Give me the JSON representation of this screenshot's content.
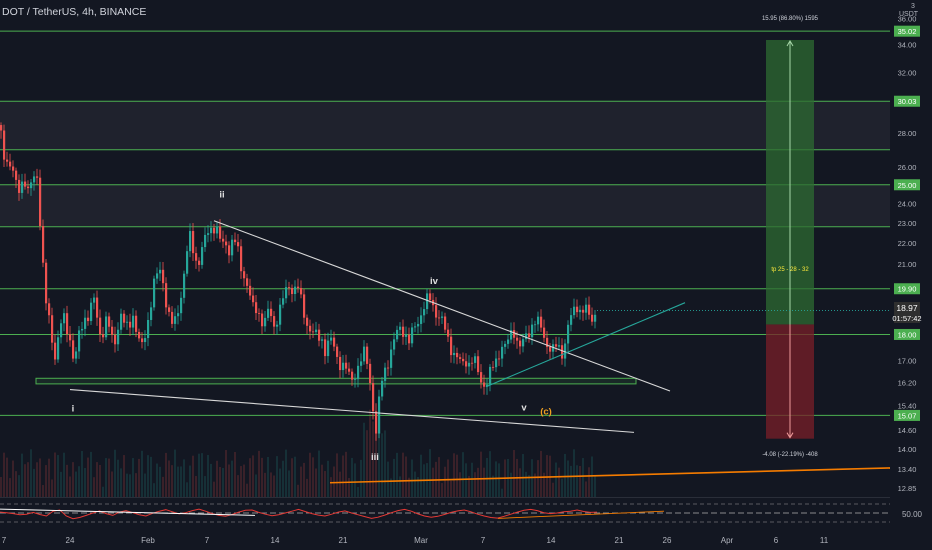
{
  "header": {
    "symbol_title": "DOT / TetherUS, 4h, BINANCE",
    "currency": "USDT",
    "scale_marker": "3"
  },
  "colors": {
    "background": "#131722",
    "level_line": "#4caf50",
    "candle_up": "#26a69a",
    "candle_down": "#ef5350",
    "profit_zone": "#2e6b32",
    "loss_zone": "#7a1f28",
    "rsi_line": "#e53935",
    "trend_orange": "#f57c00",
    "wave_label": "#e0e0e0",
    "wave_c_label": "#f0a020",
    "axis_text": "#b2b5be"
  },
  "chart_data": {
    "type": "candlestick",
    "symbol": "DOT / TetherUS",
    "timeframe": "4h",
    "exchange": "BINANCE",
    "y_scale": "log",
    "ylim": [
      12.6,
      37.5
    ],
    "x_tick_labels": [
      "7",
      "24",
      "Feb",
      "7",
      "14",
      "21",
      "Mar",
      "7",
      "14",
      "21",
      "26",
      "Apr",
      "6",
      "11"
    ],
    "y_tick_labels": [
      "12.85",
      "13.40",
      "14.00",
      "14.60",
      "15.40",
      "16.20",
      "17.00",
      "18.00",
      "19.00",
      "20.00",
      "21.00",
      "22.00",
      "23.00",
      "24.00",
      "26.00",
      "28.00",
      "30.00",
      "32.00",
      "34.00",
      "36.00"
    ],
    "horizontal_levels": [
      "35.02",
      "30.03",
      "27.00",
      "25.00",
      "22.80",
      "19.90",
      "18.00",
      "15.07"
    ],
    "highlighted_levels": [
      35.02,
      30.03,
      25.0,
      19.9,
      18.0,
      15.07
    ],
    "current_price": "18.97",
    "countdown": "01:57:42",
    "price_path": [
      [
        0,
        28.5
      ],
      [
        4,
        27.0
      ],
      [
        8,
        26.3
      ],
      [
        13,
        25.6
      ],
      [
        18,
        24.8
      ],
      [
        24,
        25.4
      ],
      [
        29,
        24.3
      ],
      [
        33,
        25.4
      ],
      [
        37,
        26.0
      ],
      [
        40,
        23.5
      ],
      [
        43,
        21.0
      ],
      [
        46,
        19.3
      ],
      [
        50,
        18.6
      ],
      [
        53,
        17.8
      ],
      [
        55,
        17.1
      ],
      [
        58,
        17.6
      ],
      [
        61,
        18.3
      ],
      [
        65,
        18.7
      ],
      [
        69,
        18.1
      ],
      [
        72,
        17.6
      ],
      [
        75,
        16.6
      ],
      [
        78,
        17.7
      ],
      [
        82,
        18.4
      ],
      [
        86,
        18.8
      ],
      [
        90,
        18.7
      ],
      [
        94,
        19.5
      ],
      [
        98,
        18.6
      ],
      [
        102,
        17.9
      ],
      [
        106,
        18.5
      ],
      [
        110,
        18.2
      ],
      [
        114,
        17.6
      ],
      [
        118,
        18.3
      ],
      [
        122,
        18.8
      ],
      [
        126,
        18.1
      ],
      [
        130,
        18.5
      ],
      [
        134,
        18.9
      ],
      [
        138,
        17.8
      ],
      [
        142,
        17.4
      ],
      [
        146,
        18.1
      ],
      [
        150,
        19.0
      ],
      [
        154,
        20.0
      ],
      [
        158,
        20.5
      ],
      [
        162,
        20.8
      ],
      [
        166,
        19.5
      ],
      [
        170,
        18.6
      ],
      [
        174,
        18.2
      ],
      [
        178,
        19.0
      ],
      [
        182,
        19.8
      ],
      [
        186,
        21.0
      ],
      [
        190,
        22.3
      ],
      [
        194,
        21.7
      ],
      [
        198,
        21.0
      ],
      [
        202,
        21.5
      ],
      [
        206,
        22.2
      ],
      [
        210,
        22.8
      ],
      [
        214,
        22.9
      ],
      [
        218,
        22.5
      ],
      [
        222,
        21.8
      ],
      [
        226,
        22.1
      ],
      [
        230,
        21.7
      ],
      [
        234,
        22.2
      ],
      [
        238,
        21.6
      ],
      [
        242,
        20.8
      ],
      [
        246,
        20.4
      ],
      [
        250,
        19.6
      ],
      [
        254,
        18.9
      ],
      [
        258,
        19.1
      ],
      [
        262,
        18.6
      ],
      [
        266,
        18.5
      ],
      [
        270,
        19.0
      ],
      [
        274,
        18.3
      ],
      [
        278,
        18.8
      ],
      [
        282,
        19.2
      ],
      [
        286,
        19.7
      ],
      [
        290,
        20.1
      ],
      [
        294,
        19.9
      ],
      [
        298,
        20.0
      ],
      [
        302,
        19.2
      ],
      [
        306,
        18.6
      ],
      [
        310,
        18.3
      ],
      [
        314,
        18.0
      ],
      [
        318,
        17.8
      ],
      [
        322,
        17.9
      ],
      [
        326,
        17.4
      ],
      [
        330,
        17.8
      ],
      [
        334,
        17.5
      ],
      [
        338,
        17.1
      ],
      [
        342,
        16.9
      ],
      [
        346,
        16.7
      ],
      [
        350,
        16.3
      ],
      [
        354,
        16.4
      ],
      [
        358,
        16.8
      ],
      [
        362,
        17.0
      ],
      [
        366,
        17.3
      ],
      [
        370,
        16.4
      ],
      [
        373,
        15.6
      ],
      [
        376,
        14.3
      ],
      [
        379,
        15.3
      ],
      [
        382,
        16.2
      ],
      [
        386,
        16.8
      ],
      [
        390,
        17.2
      ],
      [
        394,
        17.6
      ],
      [
        398,
        18.1
      ],
      [
        402,
        18.4
      ],
      [
        406,
        18.0
      ],
      [
        410,
        17.6
      ],
      [
        414,
        18.2
      ],
      [
        418,
        18.6
      ],
      [
        422,
        18.9
      ],
      [
        426,
        19.2
      ],
      [
        430,
        19.5
      ],
      [
        434,
        19.2
      ],
      [
        438,
        18.8
      ],
      [
        442,
        18.5
      ],
      [
        446,
        18.1
      ],
      [
        450,
        17.7
      ],
      [
        454,
        17.3
      ],
      [
        458,
        17.0
      ],
      [
        462,
        16.8
      ],
      [
        466,
        17.1
      ],
      [
        470,
        16.9
      ],
      [
        474,
        17.0
      ],
      [
        478,
        16.6
      ],
      [
        482,
        16.3
      ],
      [
        486,
        16.1
      ],
      [
        490,
        16.4
      ],
      [
        494,
        16.8
      ],
      [
        498,
        17.2
      ],
      [
        502,
        17.6
      ],
      [
        506,
        17.4
      ],
      [
        510,
        17.9
      ],
      [
        514,
        18.3
      ],
      [
        518,
        17.7
      ],
      [
        522,
        17.4
      ],
      [
        526,
        17.9
      ],
      [
        530,
        18.2
      ],
      [
        534,
        18.6
      ],
      [
        538,
        18.4
      ],
      [
        542,
        18.2
      ],
      [
        546,
        17.8
      ],
      [
        550,
        17.5
      ],
      [
        554,
        17.3
      ],
      [
        558,
        17.6
      ],
      [
        562,
        17.3
      ],
      [
        566,
        17.8
      ],
      [
        570,
        18.5
      ],
      [
        574,
        18.9
      ],
      [
        578,
        19.3
      ],
      [
        582,
        18.9
      ],
      [
        586,
        19.0
      ],
      [
        590,
        18.6
      ],
      [
        594,
        18.8
      ],
      [
        597,
        18.97
      ]
    ],
    "trade_box": {
      "target_label": "15.95 (86.80%) 1595",
      "tp_label": "tp 25 - 28 - 32",
      "stop_label": "-4.08 (-22.19%) -408",
      "entry": 18.4,
      "target": 34.35,
      "stop": 14.32
    },
    "wave_labels": [
      {
        "text": "i",
        "x": 73,
        "y": 15.2,
        "color": "#e0e0e0"
      },
      {
        "text": "ii",
        "x": 222,
        "y": 24.3,
        "color": "#e0e0e0"
      },
      {
        "text": "iii",
        "x": 375,
        "y": 13.67,
        "color": "#e0e0e0"
      },
      {
        "text": "iv",
        "x": 434,
        "y": 20.1,
        "color": "#e0e0e0"
      },
      {
        "text": "v",
        "x": 524,
        "y": 15.24,
        "color": "#e0e0e0"
      },
      {
        "text": "(c)",
        "x": 546,
        "y": 15.1,
        "color": "#f0a020"
      }
    ],
    "trend_lines": [
      {
        "name": "upper-wedge-line",
        "from": [
          214,
          23.1
        ],
        "to": [
          670,
          15.9
        ],
        "color": "#d8d8d8"
      },
      {
        "name": "lower-wedge-line",
        "from": [
          70,
          15.95
        ],
        "to": [
          634,
          14.52
        ],
        "color": "#d8d8d8"
      },
      {
        "name": "rising-support-line",
        "from": [
          486,
          16.05
        ],
        "to": [
          685,
          19.3
        ],
        "color": "#26a69a"
      },
      {
        "name": "long-orange-trendline",
        "from": [
          330,
          13.0
        ],
        "to": [
          890,
          13.43
        ],
        "color": "#f57c00"
      }
    ],
    "support_box": {
      "top": 16.35,
      "bottom": 16.15,
      "x0": 36,
      "x1": 636
    },
    "rsi": {
      "level": "50.00",
      "values": [
        50.3,
        50.1,
        49.8,
        49.4,
        49.6,
        50.2,
        49.5,
        49.0,
        50.6,
        51.0,
        49.0,
        48.1,
        48.5,
        49.2,
        50.0,
        50.7,
        49.8,
        49.2,
        50.3,
        50.8,
        50.1,
        49.4,
        49.0,
        49.9,
        50.6,
        51.1,
        50.4,
        49.7,
        50.1,
        50.8,
        51.3,
        50.6,
        49.8,
        49.2,
        48.9,
        49.5,
        50.3,
        50.9,
        51.0,
        50.2,
        49.6,
        49.1,
        49.4,
        50.0,
        50.6,
        51.2,
        50.5,
        49.8,
        49.3,
        49.0,
        49.6,
        50.3,
        50.7,
        50.0,
        49.4,
        48.8,
        48.2,
        48.6,
        49.3,
        50.1,
        50.8,
        51.2,
        50.6,
        49.7,
        49.0,
        48.6,
        48.9,
        49.5,
        50.2,
        50.7,
        51.0,
        50.4,
        49.6,
        49.0,
        48.5,
        48.3,
        48.9,
        49.6,
        50.3,
        50.9,
        51.2,
        50.8,
        50.1,
        49.8,
        50.0,
        50.4,
        50.6,
        51.0,
        50.5,
        50.2,
        50.3
      ]
    }
  }
}
